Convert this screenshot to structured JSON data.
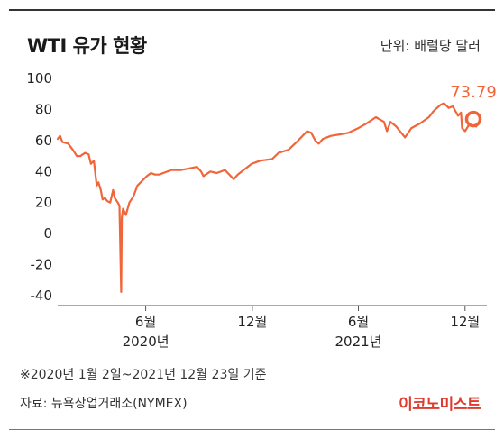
{
  "chart_data": {
    "type": "line",
    "title": "WTI 유가 현황",
    "unit_note": "단위: 배럴당 달러",
    "ylim": [
      -40,
      100
    ],
    "y_ticks": [
      "100",
      "80",
      "60",
      "40",
      "20",
      "0",
      "-20",
      "-40"
    ],
    "x_ticks": [
      {
        "label": "6월",
        "year": "2020년",
        "date": "2020-06"
      },
      {
        "label": "12월",
        "year": "",
        "date": "2020-12"
      },
      {
        "label": "6월",
        "year": "2021년",
        "date": "2021-06"
      },
      {
        "label": "12월",
        "year": "",
        "date": "2021-12"
      }
    ],
    "series": [
      {
        "color": "#f0663a",
        "points": [
          [
            "2020-01-02",
            61
          ],
          [
            "2020-01-06",
            63
          ],
          [
            "2020-01-10",
            59
          ],
          [
            "2020-01-20",
            58
          ],
          [
            "2020-01-28",
            54
          ],
          [
            "2020-02-04",
            50
          ],
          [
            "2020-02-10",
            50
          ],
          [
            "2020-02-18",
            52
          ],
          [
            "2020-02-24",
            51
          ],
          [
            "2020-02-28",
            45
          ],
          [
            "2020-03-04",
            47
          ],
          [
            "2020-03-09",
            31
          ],
          [
            "2020-03-12",
            33
          ],
          [
            "2020-03-16",
            28
          ],
          [
            "2020-03-19",
            22
          ],
          [
            "2020-03-23",
            23
          ],
          [
            "2020-03-27",
            21
          ],
          [
            "2020-04-01",
            20
          ],
          [
            "2020-04-06",
            28
          ],
          [
            "2020-04-09",
            23
          ],
          [
            "2020-04-14",
            20
          ],
          [
            "2020-04-17",
            18
          ],
          [
            "2020-04-20",
            -37.6
          ],
          [
            "2020-04-21",
            10
          ],
          [
            "2020-04-23",
            16
          ],
          [
            "2020-04-28",
            12
          ],
          [
            "2020-05-04",
            20
          ],
          [
            "2020-05-11",
            24
          ],
          [
            "2020-05-18",
            31
          ],
          [
            "2020-05-26",
            34
          ],
          [
            "2020-06-03",
            37
          ],
          [
            "2020-06-10",
            39
          ],
          [
            "2020-06-17",
            38
          ],
          [
            "2020-06-24",
            38
          ],
          [
            "2020-07-01",
            39
          ],
          [
            "2020-07-15",
            41
          ],
          [
            "2020-08-01",
            41
          ],
          [
            "2020-08-15",
            42
          ],
          [
            "2020-08-28",
            43
          ],
          [
            "2020-09-04",
            40
          ],
          [
            "2020-09-08",
            37
          ],
          [
            "2020-09-20",
            40
          ],
          [
            "2020-10-01",
            39
          ],
          [
            "2020-10-15",
            41
          ],
          [
            "2020-10-30",
            35
          ],
          [
            "2020-11-06",
            38
          ],
          [
            "2020-11-16",
            41
          ],
          [
            "2020-11-30",
            45
          ],
          [
            "2020-12-15",
            47
          ],
          [
            "2021-01-04",
            48
          ],
          [
            "2021-01-15",
            52
          ],
          [
            "2021-02-01",
            54
          ],
          [
            "2021-02-15",
            59
          ],
          [
            "2021-03-05",
            66
          ],
          [
            "2021-03-12",
            65
          ],
          [
            "2021-03-19",
            60
          ],
          [
            "2021-03-25",
            58
          ],
          [
            "2021-04-01",
            61
          ],
          [
            "2021-04-15",
            63
          ],
          [
            "2021-05-01",
            64
          ],
          [
            "2021-05-15",
            65
          ],
          [
            "2021-06-01",
            68
          ],
          [
            "2021-06-15",
            71
          ],
          [
            "2021-07-01",
            75
          ],
          [
            "2021-07-15",
            72
          ],
          [
            "2021-07-20",
            66
          ],
          [
            "2021-07-26",
            72
          ],
          [
            "2021-08-05",
            69
          ],
          [
            "2021-08-20",
            62
          ],
          [
            "2021-08-31",
            68
          ],
          [
            "2021-09-15",
            71
          ],
          [
            "2021-09-30",
            75
          ],
          [
            "2021-10-08",
            79
          ],
          [
            "2021-10-20",
            83
          ],
          [
            "2021-10-26",
            84
          ],
          [
            "2021-11-03",
            81
          ],
          [
            "2021-11-10",
            82
          ],
          [
            "2021-11-19",
            76
          ],
          [
            "2021-11-24",
            78
          ],
          [
            "2021-11-26",
            68
          ],
          [
            "2021-12-01",
            66
          ],
          [
            "2021-12-06",
            69
          ],
          [
            "2021-12-10",
            72
          ],
          [
            "2021-12-14",
            71
          ],
          [
            "2021-12-17",
            70
          ],
          [
            "2021-12-20",
            69
          ],
          [
            "2021-12-23",
            73.79
          ]
        ]
      }
    ],
    "last_value_label": "73.79",
    "grid": false
  },
  "footer": {
    "note": "※2020년 1월 2일~2021년 12월 23일 기준",
    "source": "자료: 뉴욕상업거래소(NYMEX)",
    "logo": "이코노미스트"
  }
}
